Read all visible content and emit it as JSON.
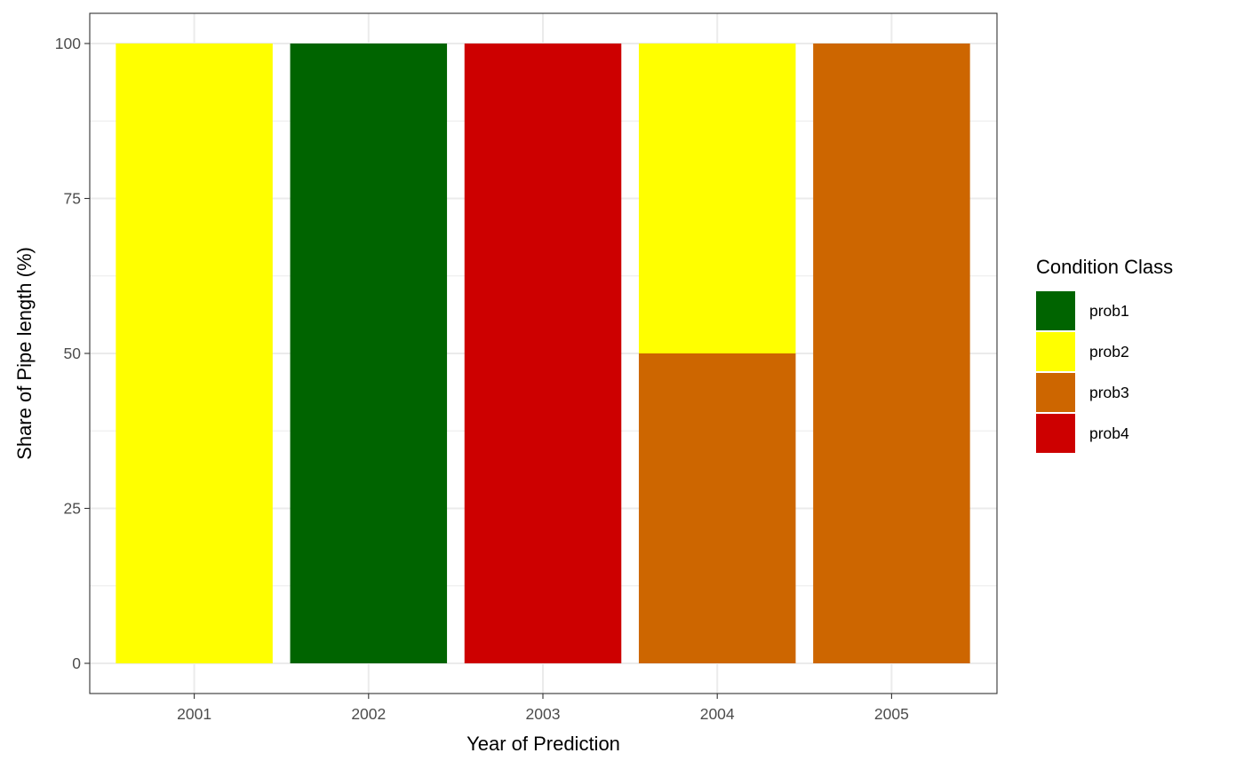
{
  "chart_data": {
    "type": "bar",
    "stacked": true,
    "categories": [
      "2001",
      "2002",
      "2003",
      "2004",
      "2005"
    ],
    "series": [
      {
        "name": "prob1",
        "color": "#006400",
        "values": [
          0,
          100,
          0,
          0,
          0
        ]
      },
      {
        "name": "prob2",
        "color": "#FFFF00",
        "values": [
          100,
          0,
          0,
          50,
          0
        ]
      },
      {
        "name": "prob3",
        "color": "#CD6600",
        "values": [
          0,
          0,
          0,
          50,
          100
        ]
      },
      {
        "name": "prob4",
        "color": "#CD0000",
        "values": [
          0,
          0,
          100,
          0,
          0
        ]
      }
    ],
    "stack_order": [
      "prob4",
      "prob3",
      "prob2",
      "prob1"
    ],
    "xlabel": "Year of Prediction",
    "ylabel": "Share of Pipe length (%)",
    "yticks": [
      0,
      25,
      50,
      75,
      100
    ],
    "ylim": [
      0,
      100
    ],
    "grid": true,
    "legend": {
      "title": "Condition Class",
      "position": "right"
    }
  }
}
